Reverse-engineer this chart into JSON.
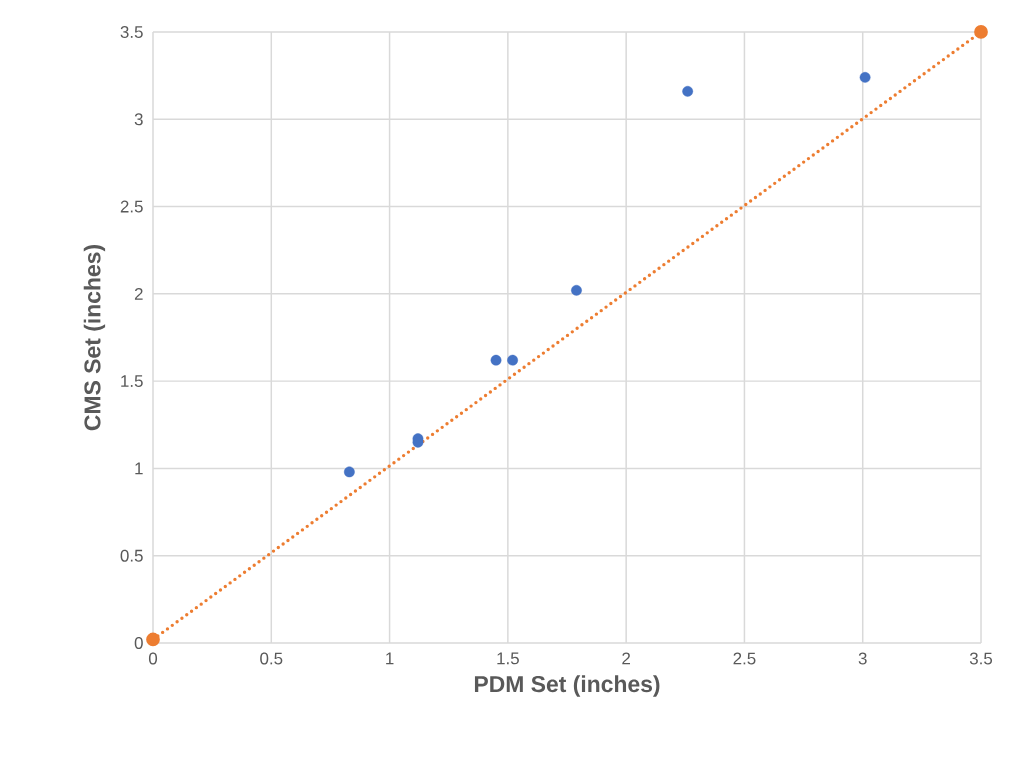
{
  "chart_data": {
    "type": "scatter",
    "xlabel": "PDM Set (inches)",
    "ylabel": "CMS Set (inches)",
    "series": [
      {
        "type": "scatter",
        "color": "#4472c4",
        "marker": "circle",
        "x": [
          0.83,
          1.12,
          1.12,
          1.45,
          1.52,
          1.79,
          2.26,
          3.01
        ],
        "values": [
          0.98,
          1.17,
          1.15,
          1.62,
          1.62,
          2.02,
          3.16,
          3.24
        ]
      },
      {
        "type": "line",
        "color": "#ed7d31",
        "marker": "circle",
        "line_style": "dotted",
        "x": [
          0,
          3.5
        ],
        "values": [
          0.02,
          3.5
        ]
      }
    ],
    "xlim": [
      0,
      3.5
    ],
    "ylim": [
      0,
      3.5
    ],
    "xticks": [
      0,
      0.5,
      1,
      1.5,
      2,
      2.5,
      3,
      3.5
    ],
    "yticks": [
      0,
      0.5,
      1,
      1.5,
      2,
      2.5,
      3,
      3.5
    ],
    "grid": true
  }
}
